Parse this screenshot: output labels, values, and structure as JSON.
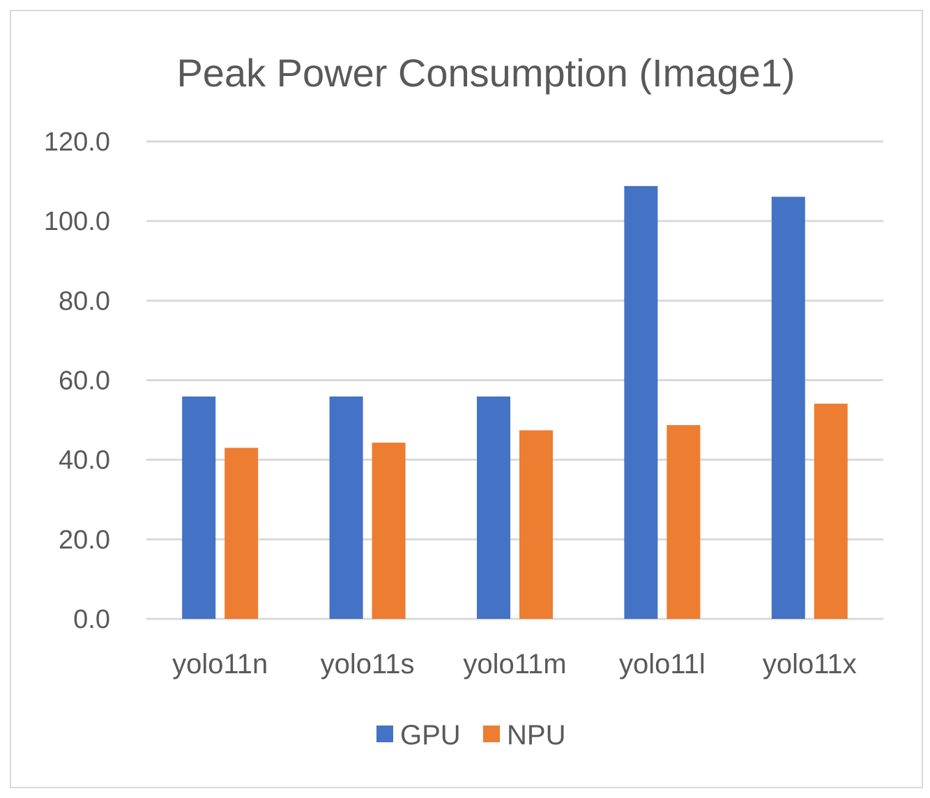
{
  "chart_data": {
    "type": "bar",
    "title": "Peak Power Consumption (Image1)",
    "xlabel": "",
    "ylabel": "",
    "ylim": [
      0,
      120
    ],
    "yticks": [
      0,
      20,
      40,
      60,
      80,
      100,
      120
    ],
    "ytick_labels": [
      "0.0",
      "20.0",
      "40.0",
      "60.0",
      "80.0",
      "100.0",
      "120.0"
    ],
    "grid": true,
    "legend_position": "bottom",
    "categories": [
      "yolo11n",
      "yolo11s",
      "yolo11m",
      "yolo11l",
      "yolo11x"
    ],
    "series": [
      {
        "name": "GPU",
        "color": "#4472C4",
        "values": [
          55.9,
          55.9,
          55.9,
          108.8,
          106.1
        ]
      },
      {
        "name": "NPU",
        "color": "#ED7D31",
        "values": [
          43.0,
          44.3,
          47.4,
          48.7,
          54.1
        ]
      }
    ]
  }
}
